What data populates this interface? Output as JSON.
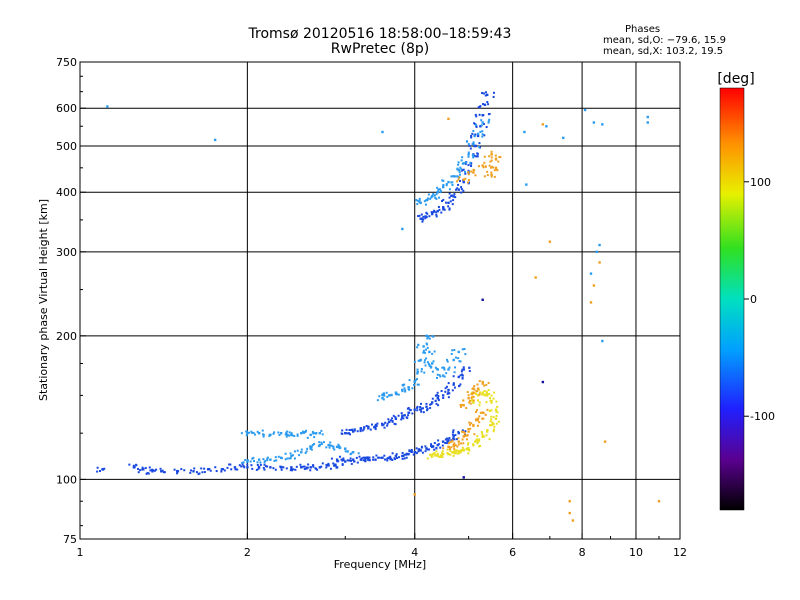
{
  "chart_data": {
    "type": "scatter",
    "title": "Tromsø 20120516 18:58:00–18:59:43",
    "subtitle": "RwPretec (8p)",
    "xlabel": "Frequency [MHz]",
    "ylabel": "Stationary phase Virtual Height [km]",
    "x_scale": "log",
    "y_scale": "log",
    "xlim": [
      1,
      12
    ],
    "ylim": [
      75,
      750
    ],
    "x_ticks": [
      1,
      2,
      4,
      6,
      8,
      10,
      12
    ],
    "x_tick_labels": [
      "1",
      "2",
      "4",
      "6",
      "8",
      "10",
      "12"
    ],
    "y_ticks": [
      75,
      100,
      200,
      300,
      400,
      500,
      600,
      750
    ],
    "y_tick_labels": [
      "75",
      "100",
      "200",
      "300",
      "400",
      "500",
      "600",
      "750"
    ],
    "grid": true,
    "phases_box": {
      "title": "Phases",
      "line1": "mean, sd,O: −79.6, 15.9",
      "line2": "mean, sd,X: 103.2, 19.5"
    },
    "colorbar": {
      "label": "[deg]",
      "range": [
        -180,
        180
      ],
      "ticks": [
        100,
        0,
        -100
      ],
      "tick_labels": [
        "100",
        "0",
        "-100"
      ]
    },
    "trace_colors": {
      "blue": "#1848e0",
      "lightblue": "#2a9bf0",
      "cyan": "#18d8e8",
      "yellow": "#e8e020",
      "orange": "#f0a020",
      "darkblue": "#1010a0"
    },
    "series": [
      {
        "name": "O-low",
        "color": "blue",
        "x": [
          1.1,
          1.25,
          1.3,
          1.35,
          1.4,
          1.5,
          1.6,
          1.7,
          1.8,
          1.9,
          2.0,
          2.1,
          2.2,
          2.3,
          2.4,
          2.5,
          2.6,
          2.7,
          2.8,
          2.9
        ],
        "y": [
          105,
          106,
          105,
          104,
          104,
          104,
          104,
          105,
          105,
          106,
          106,
          106,
          106,
          106,
          106,
          106,
          106,
          106,
          107,
          106
        ]
      },
      {
        "name": "O-low-upper",
        "color": "lightblue",
        "x": [
          2.0,
          2.1,
          2.2,
          2.3,
          2.4,
          2.5,
          2.6,
          2.7,
          2.8,
          2.9,
          3.0,
          3.1
        ],
        "y": [
          109,
          110,
          110,
          111,
          112,
          114,
          116,
          118,
          118,
          117,
          116,
          114
        ]
      },
      {
        "name": "O-shelf",
        "color": "lightblue",
        "x": [
          2.0,
          2.1,
          2.2,
          2.3,
          2.4,
          2.5,
          2.6,
          2.7
        ],
        "y": [
          125,
          125,
          124,
          125,
          124,
          125,
          124,
          125
        ]
      },
      {
        "name": "O-mid",
        "color": "blue",
        "x": [
          2.9,
          3.0,
          3.1,
          3.2,
          3.3,
          3.4,
          3.5,
          3.6,
          3.7,
          3.8,
          3.9,
          4.0,
          4.1,
          4.2,
          4.3,
          4.4,
          4.5,
          4.6,
          4.7,
          4.8
        ],
        "y": [
          110,
          109,
          110,
          110,
          110,
          110,
          111,
          111,
          112,
          112,
          113,
          114,
          115,
          116,
          117,
          118,
          120,
          121,
          123,
          125
        ]
      },
      {
        "name": "O-mid-upper",
        "color": "blue",
        "x": [
          3.0,
          3.1,
          3.2,
          3.3,
          3.4,
          3.5,
          3.6,
          3.7,
          3.8,
          3.9,
          4.0,
          4.1,
          4.2,
          4.3,
          4.4,
          4.5,
          4.6,
          4.7,
          4.8,
          4.9
        ],
        "y": [
          125,
          126,
          128,
          128,
          129,
          130,
          132,
          134,
          136,
          138,
          140,
          140,
          142,
          145,
          148,
          150,
          154,
          158,
          164,
          170
        ]
      },
      {
        "name": "O-rise",
        "color": "lightblue",
        "x": [
          3.5,
          3.6,
          3.7,
          3.8,
          3.9,
          4.0,
          4.05,
          4.1,
          4.15,
          4.2,
          4.25,
          4.3,
          4.4,
          4.5,
          4.6,
          4.7,
          4.8
        ],
        "y": [
          148,
          150,
          152,
          154,
          156,
          160,
          168,
          178,
          190,
          200,
          185,
          175,
          170,
          165,
          170,
          178,
          185
        ]
      },
      {
        "name": "X-low",
        "color": "yellow",
        "x": [
          4.3,
          4.4,
          4.5,
          4.6,
          4.7,
          4.8,
          4.9,
          5.0,
          5.1,
          5.2,
          5.3,
          5.4,
          5.5,
          5.6,
          5.6,
          5.5,
          5.4,
          5.3,
          5.2,
          5.1
        ],
        "y": [
          112,
          112,
          113,
          113,
          114,
          114,
          115,
          116,
          118,
          120,
          123,
          126,
          130,
          134,
          140,
          146,
          150,
          152,
          150,
          145
        ]
      },
      {
        "name": "X-low-orange",
        "color": "orange",
        "x": [
          4.6,
          4.7,
          4.8,
          4.9,
          5.0,
          5.1,
          5.2,
          5.3,
          4.9,
          5.0,
          5.1,
          5.2,
          5.3
        ],
        "y": [
          117,
          118,
          120,
          123,
          126,
          130,
          134,
          138,
          143,
          148,
          152,
          155,
          160
        ]
      },
      {
        "name": "O-F-upper",
        "color": "blue",
        "x": [
          4.1,
          4.2,
          4.3,
          4.4,
          4.5,
          4.6,
          4.7,
          4.8,
          4.9,
          5.0,
          5.05,
          5.1,
          5.15,
          5.2,
          5.25,
          5.3,
          5.35,
          5.4
        ],
        "y": [
          352,
          355,
          360,
          365,
          372,
          380,
          392,
          405,
          420,
          440,
          460,
          480,
          500,
          525,
          550,
          580,
          610,
          640
        ]
      },
      {
        "name": "O-F-upper-left",
        "color": "lightblue",
        "x": [
          4.1,
          4.2,
          4.3,
          4.4,
          4.5,
          4.6,
          4.7,
          4.8,
          4.9,
          5.0,
          5.1,
          5.2,
          5.3
        ],
        "y": [
          380,
          385,
          392,
          400,
          410,
          420,
          432,
          445,
          460,
          480,
          505,
          530,
          560
        ]
      },
      {
        "name": "X-F-upper",
        "color": "orange",
        "x": [
          4.9,
          5.1,
          5.3,
          5.5,
          5.6,
          5.6,
          5.5
        ],
        "y": [
          425,
          440,
          455,
          435,
          450,
          470,
          480
        ]
      },
      {
        "name": "scatter-misc",
        "color": "lightblue",
        "x": [
          1.12,
          1.75,
          3.5,
          3.8,
          6.3,
          6.35,
          6.9,
          7.4,
          8.1,
          8.4,
          8.7,
          8.5,
          8.6,
          10.5,
          10.5,
          8.3,
          8.7
        ],
        "y": [
          605,
          515,
          535,
          335,
          535,
          415,
          550,
          520,
          595,
          560,
          555,
          300,
          310,
          560,
          575,
          270,
          195
        ]
      },
      {
        "name": "scatter-warm",
        "color": "orange",
        "x": [
          4.6,
          6.8,
          7.0,
          6.6,
          8.3,
          8.4,
          8.6,
          8.8,
          7.6,
          7.6,
          7.7,
          11.0,
          4.0
        ],
        "y": [
          570,
          555,
          315,
          265,
          235,
          255,
          285,
          120,
          90,
          85,
          82,
          90,
          93
        ]
      },
      {
        "name": "scatter-dark",
        "color": "darkblue",
        "x": [
          5.3,
          6.8,
          4.9
        ],
        "y": [
          238,
          160,
          101
        ]
      }
    ]
  }
}
